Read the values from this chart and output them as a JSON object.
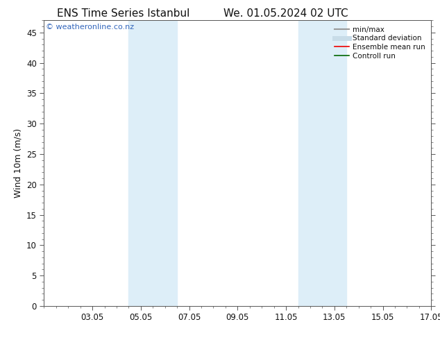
{
  "title_left": "ENS Time Series Istanbul",
  "title_right": "We. 01.05.2024 02 UTC",
  "ylabel": "Wind 10m (m/s)",
  "xtick_labels": [
    "03.05",
    "05.05",
    "07.05",
    "09.05",
    "11.05",
    "13.05",
    "15.05",
    "17.05"
  ],
  "xtick_positions": [
    2,
    4,
    6,
    8,
    10,
    12,
    14,
    16
  ],
  "ylim": [
    0,
    47
  ],
  "yticks": [
    0,
    5,
    10,
    15,
    20,
    25,
    30,
    35,
    40,
    45
  ],
  "background_color": "#ffffff",
  "plot_bg_color": "#ffffff",
  "shade_regions": [
    {
      "xmin": 3.5,
      "xmax": 5.5,
      "color": "#ddeef8"
    },
    {
      "xmin": 10.5,
      "xmax": 12.5,
      "color": "#ddeef8"
    }
  ],
  "watermark_text": "© weatheronline.co.nz",
  "watermark_color": "#3366bb",
  "legend_items": [
    {
      "label": "min/max",
      "color": "#999999",
      "lw": 1.5
    },
    {
      "label": "Standard deviation",
      "color": "#c8dce8",
      "lw": 5
    },
    {
      "label": "Ensemble mean run",
      "color": "#ee0000",
      "lw": 1.2
    },
    {
      "label": "Controll run",
      "color": "#006600",
      "lw": 1.2
    }
  ],
  "font_color": "#111111",
  "tick_font_size": 8.5,
  "label_font_size": 9,
  "title_font_size": 11,
  "legend_font_size": 7.5,
  "watermark_font_size": 8
}
